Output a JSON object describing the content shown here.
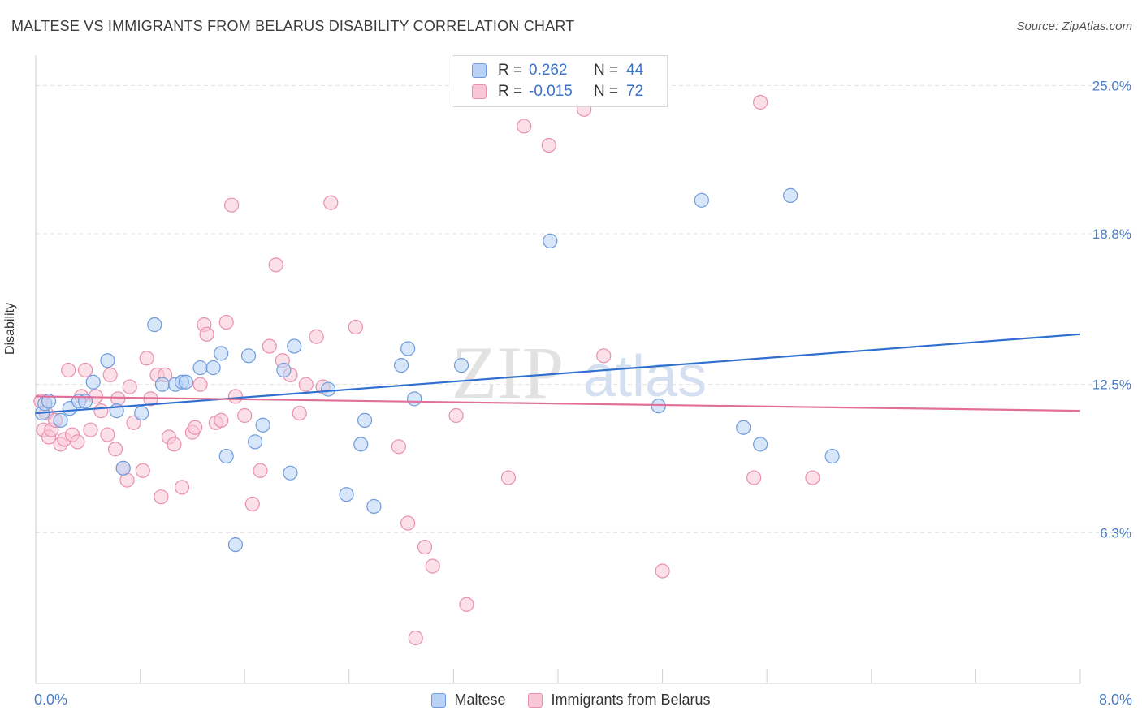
{
  "header": {
    "title": "MALTESE VS IMMIGRANTS FROM BELARUS DISABILITY CORRELATION CHART",
    "source": "Source: ZipAtlas.com"
  },
  "legend": {
    "r_label": "R =",
    "n_label": "N =",
    "rows": [
      {
        "r": "0.262",
        "n": "44",
        "fill": "#b8d1f4",
        "stroke": "#6f9bdc"
      },
      {
        "r": "-0.015",
        "n": "72",
        "fill": "#f9c6d6",
        "stroke": "#e890ad"
      }
    ]
  },
  "bottom_legend": [
    "Maltese",
    "Immigrants from Belarus"
  ],
  "watermark": {
    "zip": "ZIP",
    "atlas": "atlas"
  },
  "chart_data": {
    "type": "scatter",
    "title": "MALTESE VS IMMIGRANTS FROM BELARUS DISABILITY CORRELATION CHART",
    "ylabel": "Disability",
    "xlabel": "",
    "xlim": [
      0,
      8.0
    ],
    "ylim": [
      0,
      26.2
    ],
    "x_tick_labels": [
      "0.0%",
      "8.0%"
    ],
    "y_ticks": [
      6.3,
      12.5,
      18.8,
      25.0
    ],
    "y_tick_labels": [
      "6.3%",
      "12.5%",
      "18.8%",
      "25.0%"
    ],
    "grid": true,
    "colors": {
      "maltese": "#6f9bdc",
      "belarus": "#e890ad",
      "maltese_line": "#2f6fce",
      "belarus_line": "#e0709a"
    },
    "series": [
      {
        "name": "Maltese",
        "x": [
          0.05,
          0.07,
          0.1,
          0.19,
          0.26,
          0.33,
          0.38,
          0.44,
          0.55,
          0.62,
          0.67,
          0.81,
          0.91,
          0.97,
          1.07,
          1.12,
          1.15,
          1.26,
          1.36,
          1.42,
          1.46,
          1.53,
          1.63,
          1.68,
          1.74,
          1.9,
          1.95,
          1.98,
          2.24,
          2.38,
          2.49,
          2.52,
          2.59,
          2.8,
          2.85,
          2.9,
          3.26,
          3.94,
          4.77,
          5.1,
          5.42,
          5.55,
          5.78,
          6.1
        ],
        "y": [
          11.3,
          11.7,
          11.8,
          11.0,
          11.5,
          11.8,
          11.8,
          12.6,
          13.5,
          11.4,
          9.0,
          11.3,
          15.0,
          12.5,
          12.5,
          12.6,
          12.6,
          13.2,
          13.2,
          13.8,
          9.5,
          5.8,
          13.7,
          10.1,
          10.8,
          13.1,
          8.8,
          14.1,
          12.3,
          7.9,
          10.0,
          11.0,
          7.4,
          13.3,
          14.0,
          11.9,
          13.3,
          18.5,
          11.6,
          20.2,
          10.7,
          10.0,
          20.4,
          9.5
        ]
      },
      {
        "name": "Immigrants from Belarus",
        "x": [
          0.04,
          0.06,
          0.08,
          0.1,
          0.12,
          0.15,
          0.19,
          0.22,
          0.25,
          0.28,
          0.32,
          0.35,
          0.38,
          0.42,
          0.46,
          0.5,
          0.55,
          0.57,
          0.61,
          0.63,
          0.67,
          0.7,
          0.72,
          0.75,
          0.82,
          0.85,
          0.88,
          0.93,
          0.96,
          0.99,
          1.02,
          1.06,
          1.12,
          1.2,
          1.22,
          1.26,
          1.29,
          1.31,
          1.38,
          1.42,
          1.46,
          1.5,
          1.53,
          1.6,
          1.66,
          1.72,
          1.79,
          1.84,
          1.89,
          1.95,
          2.02,
          2.07,
          2.15,
          2.2,
          2.26,
          2.45,
          2.78,
          2.85,
          2.91,
          2.98,
          3.04,
          3.22,
          3.3,
          3.62,
          3.74,
          3.93,
          4.2,
          4.35,
          4.8,
          5.5,
          5.55,
          5.95
        ],
        "y": [
          11.8,
          10.6,
          11.3,
          10.3,
          10.6,
          11.0,
          10.0,
          10.2,
          13.1,
          10.4,
          10.1,
          12.0,
          13.1,
          10.6,
          12.0,
          11.4,
          10.4,
          12.9,
          9.8,
          11.9,
          9.0,
          8.5,
          12.4,
          10.9,
          8.9,
          13.6,
          11.9,
          12.9,
          7.8,
          12.9,
          10.3,
          10.0,
          8.2,
          10.5,
          10.7,
          12.5,
          15.0,
          14.6,
          10.9,
          11.0,
          15.1,
          20.0,
          12.0,
          11.2,
          7.5,
          8.9,
          14.1,
          17.5,
          13.5,
          12.9,
          11.3,
          12.5,
          14.5,
          12.4,
          20.1,
          14.9,
          9.9,
          6.7,
          1.9,
          5.7,
          4.9,
          11.2,
          3.3,
          8.6,
          23.3,
          22.5,
          24.0,
          13.7,
          4.7,
          8.6,
          24.3,
          8.6
        ]
      }
    ],
    "trend_lines": [
      {
        "name": "Maltese",
        "x": [
          0,
          8.0
        ],
        "y": [
          11.3,
          14.6
        ]
      },
      {
        "name": "Immigrants from Belarus",
        "x": [
          0,
          8.0
        ],
        "y": [
          12.0,
          11.4
        ]
      }
    ]
  }
}
